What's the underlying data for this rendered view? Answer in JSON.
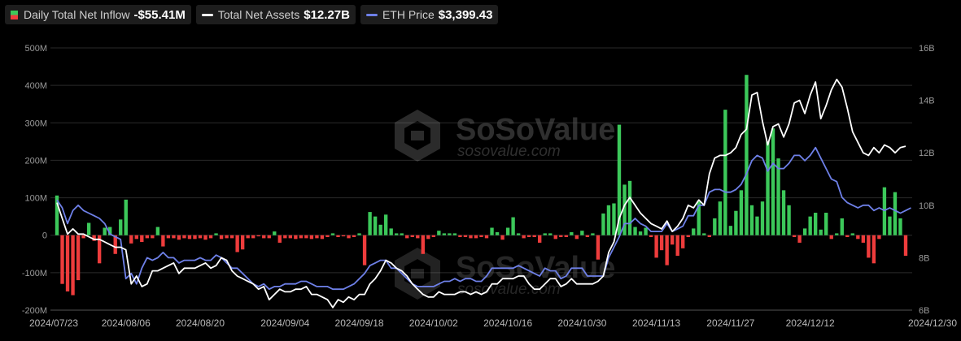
{
  "legend": {
    "inflow": {
      "label": "Daily Total Net Inflow",
      "value": "-$55.41M",
      "icon": "bar-icon"
    },
    "assets": {
      "label": "Total Net Assets",
      "value": "$12.27B",
      "color": "#ffffff"
    },
    "price": {
      "label": "ETH Price",
      "value": "$3,399.43",
      "color": "#6e80e8"
    }
  },
  "watermark": {
    "brand": "SoSoValue",
    "url": "sosovalue.com"
  },
  "chart_data": {
    "type": "bar+line",
    "left_axis": {
      "min": -200,
      "max": 500,
      "ticks": [
        "500M",
        "400M",
        "300M",
        "200M",
        "100M",
        "0",
        "-100M",
        "-200M"
      ],
      "tick_values": [
        500,
        400,
        300,
        200,
        100,
        0,
        -100,
        -200
      ]
    },
    "right_axis": {
      "min": 6,
      "max": 16,
      "ticks": [
        "16B",
        "14B",
        "12B",
        "10B",
        "8B",
        "6B"
      ],
      "tick_values": [
        16,
        14,
        12,
        10,
        8,
        6
      ]
    },
    "x_tick_labels": [
      "2024/07/23",
      "2024/08/06",
      "2024/08/20",
      "2024/09/04",
      "2024/09/18",
      "2024/10/02",
      "2024/10/16",
      "2024/10/30",
      "2024/11/13",
      "2024/11/27",
      "2024/12/12",
      "2024/12/30"
    ],
    "x_tick_index": [
      0,
      13,
      27,
      43,
      57,
      71,
      85,
      99,
      113,
      127,
      142,
      159
    ],
    "colors": {
      "positive": "#3cc85a",
      "negative": "#ee3c3c",
      "assets": "#ffffff",
      "price": "#6e80e8",
      "grid": "#2a2a2a"
    },
    "net_inflow": [
      106,
      -130,
      -150,
      -160,
      -120,
      -8,
      33,
      -15,
      -75,
      20,
      22,
      -50,
      42,
      95,
      -22,
      -10,
      -18,
      -8,
      -8,
      22,
      -30,
      -8,
      -8,
      -12,
      -8,
      -10,
      -10,
      -8,
      -12,
      -8,
      5,
      -10,
      -8,
      -8,
      -45,
      -38,
      -8,
      -8,
      -3,
      -8,
      -8,
      10,
      -20,
      -8,
      -8,
      -10,
      -8,
      -8,
      -10,
      -8,
      -10,
      -5,
      5,
      -5,
      -3,
      -8,
      -5,
      5,
      -80,
      62,
      50,
      28,
      55,
      18,
      5,
      5,
      -8,
      -5,
      -8,
      -50,
      -10,
      -5,
      12,
      5,
      5,
      5,
      -5,
      -5,
      -8,
      -8,
      -5,
      -8,
      20,
      8,
      -12,
      20,
      48,
      5,
      -8,
      -5,
      -5,
      -20,
      5,
      5,
      -10,
      -5,
      -5,
      8,
      -10,
      12,
      -5,
      5,
      -65,
      58,
      80,
      85,
      295,
      135,
      145,
      22,
      10,
      20,
      -5,
      -60,
      -40,
      -80,
      -25,
      -55,
      -35,
      -5,
      18,
      90,
      5,
      -5,
      45,
      90,
      335,
      25,
      65,
      120,
      428,
      80,
      50,
      90,
      250,
      285,
      205,
      120,
      80,
      -5,
      -20,
      18,
      50,
      60,
      15,
      60,
      -10,
      5,
      45,
      -5,
      5,
      -10,
      -20,
      -60,
      -75,
      -10,
      128,
      50,
      115,
      45,
      -55
    ],
    "net_assets": [
      10.1,
      9.5,
      8.9,
      9.1,
      8.9,
      8.9,
      8.8,
      8.7,
      8.7,
      8.6,
      8.5,
      8.4,
      8.4,
      8.3,
      7.0,
      7.3,
      6.9,
      7.0,
      7.5,
      7.5,
      7.6,
      7.7,
      7.8,
      7.4,
      7.6,
      7.6,
      7.6,
      7.7,
      7.8,
      7.6,
      7.7,
      8.0,
      7.9,
      7.5,
      7.3,
      7.2,
      7.1,
      7.0,
      6.8,
      6.9,
      6.4,
      6.6,
      6.8,
      6.7,
      6.7,
      6.8,
      6.8,
      6.9,
      6.6,
      6.6,
      6.5,
      6.4,
      6.1,
      6.4,
      6.3,
      6.5,
      6.4,
      6.6,
      6.6,
      7.0,
      7.2,
      7.5,
      7.9,
      7.8,
      7.6,
      7.5,
      7.3,
      7.0,
      6.8,
      6.6,
      6.5,
      6.5,
      6.7,
      6.6,
      6.6,
      6.6,
      6.7,
      6.7,
      6.6,
      6.7,
      6.6,
      6.7,
      7.0,
      7.0,
      7.2,
      7.2,
      7.2,
      7.3,
      7.3,
      7.0,
      6.8,
      6.8,
      7.0,
      7.2,
      7.2,
      6.9,
      7.0,
      7.2,
      7.0,
      7.0,
      7.0,
      7.0,
      7.1,
      7.3,
      8.2,
      8.6,
      9.5,
      10.0,
      10.3,
      10.0,
      9.7,
      9.5,
      9.3,
      9.2,
      9.1,
      9.4,
      9.0,
      9.2,
      9.5,
      10.0,
      9.9,
      10.2,
      10.0,
      11.2,
      11.8,
      11.9,
      11.9,
      12.0,
      12.2,
      12.7,
      12.9,
      14.2,
      14.3,
      13.2,
      12.3,
      13.0,
      13.1,
      12.6,
      13.1,
      13.9,
      14.0,
      13.5,
      14.2,
      14.7,
      13.3,
      13.8,
      14.4,
      14.8,
      14.5,
      13.7,
      12.8,
      12.4,
      12.0,
      11.9,
      12.2,
      12.0,
      12.3,
      12.2,
      12.0,
      12.2,
      12.25
    ],
    "eth_price": [
      10.2,
      9.9,
      9.3,
      9.8,
      10.0,
      9.8,
      9.7,
      9.6,
      9.5,
      9.3,
      8.9,
      8.8,
      8.7,
      7.2,
      7.4,
      7.0,
      7.6,
      8.0,
      7.9,
      8.0,
      8.2,
      8.0,
      8.0,
      7.8,
      7.9,
      7.9,
      7.9,
      8.0,
      7.9,
      7.9,
      8.1,
      8.0,
      7.8,
      7.6,
      7.6,
      7.4,
      7.2,
      7.0,
      6.9,
      7.0,
      6.8,
      6.9,
      6.9,
      7.0,
      7.0,
      7.0,
      7.1,
      7.1,
      7.0,
      6.9,
      6.9,
      6.9,
      6.8,
      6.8,
      6.8,
      6.9,
      7.0,
      7.2,
      7.4,
      7.7,
      7.8,
      7.9,
      7.9,
      7.6,
      7.6,
      7.4,
      7.2,
      7.0,
      6.9,
      6.9,
      6.9,
      6.9,
      7.0,
      7.1,
      7.1,
      7.2,
      7.1,
      7.2,
      7.2,
      7.1,
      7.1,
      7.3,
      7.6,
      7.6,
      7.6,
      7.6,
      7.6,
      7.7,
      7.6,
      7.5,
      7.4,
      7.3,
      7.6,
      7.5,
      7.5,
      7.2,
      7.3,
      7.6,
      7.6,
      7.6,
      7.3,
      7.3,
      7.3,
      7.3,
      8.0,
      8.4,
      8.8,
      9.3,
      9.3,
      9.5,
      9.3,
      9.2,
      9.0,
      9.0,
      9.0,
      9.3,
      9.0,
      9.1,
      9.2,
      9.6,
      9.6,
      10.0,
      10.0,
      10.5,
      10.6,
      10.6,
      10.5,
      10.5,
      10.6,
      10.8,
      11.2,
      11.7,
      11.9,
      11.8,
      11.3,
      11.6,
      11.4,
      11.4,
      11.6,
      11.9,
      11.9,
      11.7,
      11.9,
      12.2,
      11.8,
      11.4,
      11.0,
      10.9,
      10.3,
      10.1,
      10.0,
      9.9,
      10.0,
      10.0,
      9.8,
      9.9,
      9.8,
      9.9,
      9.8,
      9.7,
      9.8,
      9.9
    ]
  }
}
